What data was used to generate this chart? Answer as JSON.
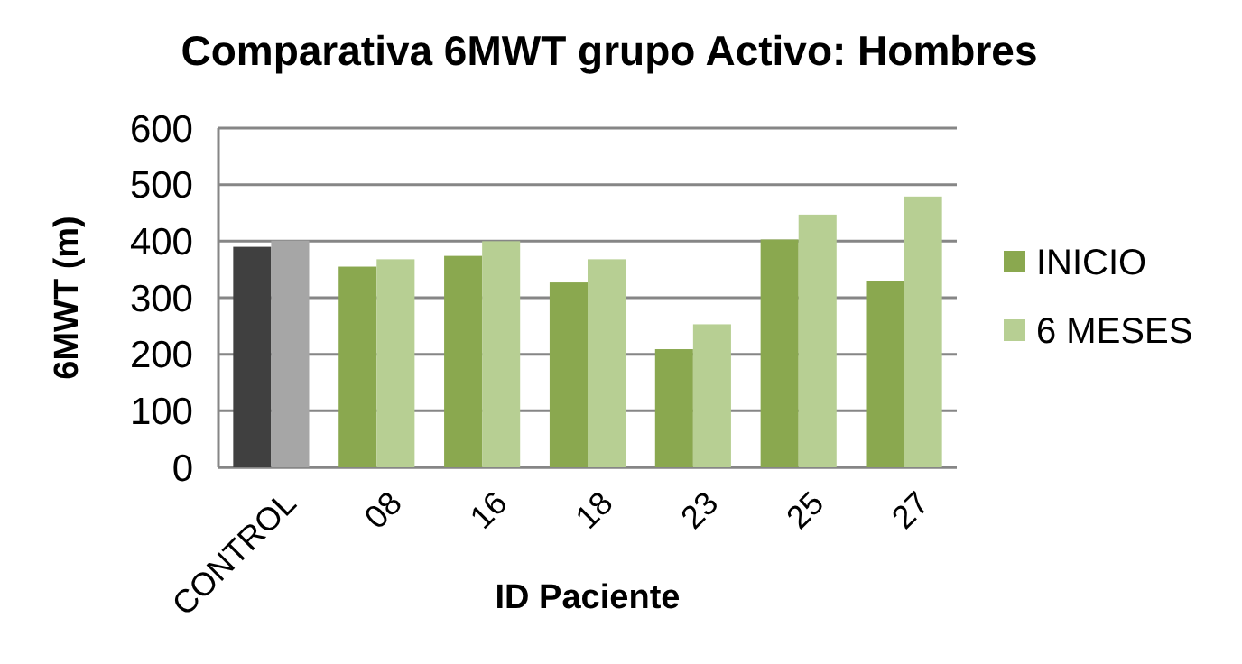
{
  "chart_data": {
    "type": "bar",
    "title": "Comparativa 6MWT grupo Activo: Hombres",
    "xlabel": "ID Paciente",
    "ylabel": "6MWT (m)",
    "categories": [
      "CONTROL",
      "08",
      "16",
      "18",
      "23",
      "25",
      "27"
    ],
    "series": [
      {
        "name": "INICIO",
        "color": "#8aa84f",
        "colors": [
          "#404040",
          "#8aa84f",
          "#8aa84f",
          "#8aa84f",
          "#8aa84f",
          "#8aa84f",
          "#8aa84f"
        ],
        "values": [
          390,
          355,
          374,
          327,
          209,
          403,
          330
        ]
      },
      {
        "name": "6 MESES",
        "color": "#b7cf93",
        "colors": [
          "#a6a6a6",
          "#b7cf93",
          "#b7cf93",
          "#b7cf93",
          "#b7cf93",
          "#b7cf93",
          "#b7cf93"
        ],
        "values": [
          401,
          368,
          400,
          368,
          253,
          447,
          479
        ]
      }
    ],
    "ylim": [
      0,
      600
    ],
    "yticks": [
      0,
      100,
      200,
      300,
      400,
      500,
      600
    ],
    "grid": "y",
    "legend": "right"
  }
}
